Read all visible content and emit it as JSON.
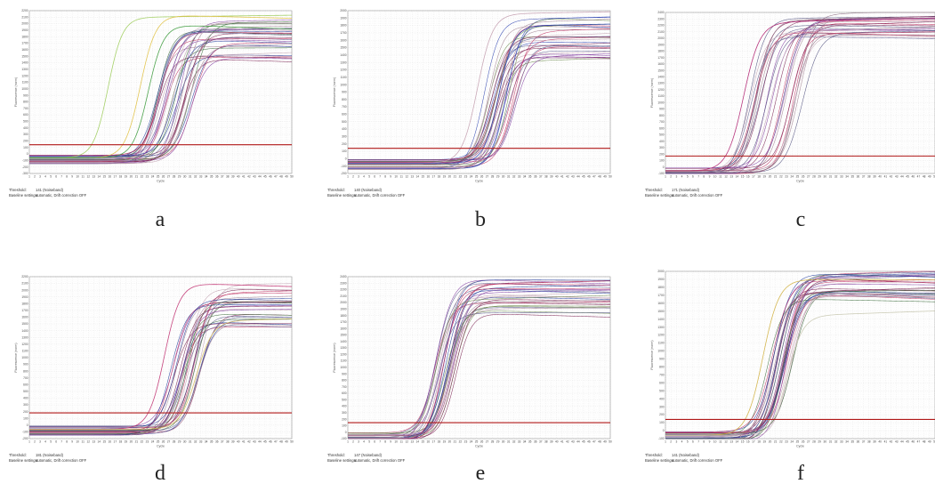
{
  "chart_data": [
    {
      "type": "line",
      "panel_label": "a",
      "xlabel": "Cycle",
      "ylabel": "Fluorescence (norm)",
      "xlim": [
        1,
        50
      ],
      "ylim": [
        -300,
        2200
      ],
      "ytick_step": 100,
      "threshold": 141,
      "threshold_text": "141 (Noiseband)",
      "baseline_text": "automatic, Drift correction OFF",
      "grid": true,
      "n_curves": 32,
      "ct_range": [
        23,
        31
      ],
      "plateau_range": [
        1450,
        2050
      ],
      "special": [
        {
          "ct": 14.5,
          "plateau": 2100,
          "color": "#9ccc5a"
        },
        {
          "ct": 20.5,
          "plateau": 2130,
          "color": "#e0c040"
        },
        {
          "ct": 22,
          "plateau": 1980,
          "color": "#3a9a3a"
        }
      ],
      "colors": [
        "#7a2050",
        "#203c9c",
        "#c03060",
        "#5a5a8c",
        "#3a6a3a",
        "#a08090",
        "#803aa0",
        "#c0a0b0"
      ]
    },
    {
      "type": "line",
      "panel_label": "b",
      "xlabel": "Cycle",
      "ylabel": "Fluorescence (norm)",
      "xlim": [
        1,
        50
      ],
      "ylim": [
        -200,
        2000
      ],
      "ytick_step": 100,
      "threshold": 140,
      "threshold_text": "140 (Noiseband)",
      "baseline_text": "automatic, Drift correction OFF",
      "grid": true,
      "n_curves": 30,
      "ct_range": [
        25,
        31
      ],
      "plateau_range": [
        1300,
        1900
      ],
      "special": [
        {
          "ct": 24,
          "plateau": 1960,
          "color": "#c4a0b0"
        },
        {
          "ct": 28,
          "plateau": 1800,
          "color": "#2a40b0"
        }
      ],
      "colors": [
        "#7a2050",
        "#2a40b0",
        "#c03060",
        "#5a5a8c",
        "#6a8a4a",
        "#a08090",
        "#803aa0",
        "#c0a0b0"
      ]
    },
    {
      "type": "line",
      "panel_label": "c",
      "xlabel": "Cycle",
      "ylabel": "Fluorescence (norm)",
      "xlim": [
        1,
        50
      ],
      "ylim": [
        -100,
        2400
      ],
      "ytick_step": 100,
      "threshold": 171,
      "threshold_text": "171 (Noiseband)",
      "baseline_text": "automatic, Drift correction OFF",
      "grid": true,
      "n_curves": 26,
      "ct_range": [
        14,
        25
      ],
      "plateau_range": [
        2000,
        2380
      ],
      "special": [
        {
          "ct": 14,
          "plateau": 2250,
          "color": "#b02070"
        },
        {
          "ct": 16,
          "plateau": 2100,
          "color": "#c05070"
        }
      ],
      "colors": [
        "#7a2050",
        "#4a4a7a",
        "#c03060",
        "#8a6a80",
        "#5a5a8c",
        "#a08090",
        "#803aa0",
        "#c0a0b0"
      ]
    },
    {
      "type": "line",
      "panel_label": "d",
      "xlabel": "Cycle",
      "ylabel": "Fluorescence (norm)",
      "xlim": [
        1,
        50
      ],
      "ylim": [
        -200,
        2200
      ],
      "ytick_step": 100,
      "threshold": 181,
      "threshold_text": "181 (Noiseband)",
      "baseline_text": "automatic, Drift correction OFF",
      "grid": true,
      "n_curves": 30,
      "ct_range": [
        26,
        32
      ],
      "plateau_range": [
        1450,
        2150
      ],
      "special": [
        {
          "ct": 25,
          "plateau": 2100,
          "color": "#c03070"
        },
        {
          "ct": 31,
          "plateau": 1550,
          "color": "#d8c060"
        }
      ],
      "colors": [
        "#7a2050",
        "#203c9c",
        "#c03060",
        "#5a5a8c",
        "#3a6a3a",
        "#a08090",
        "#803aa0",
        "#c0a0b0"
      ]
    },
    {
      "type": "line",
      "panel_label": "e",
      "xlabel": "Cycle",
      "ylabel": "Fluorescence (norm)",
      "xlim": [
        1,
        50
      ],
      "ylim": [
        -100,
        2400
      ],
      "ytick_step": 100,
      "threshold": 147,
      "threshold_text": "147 (Noiseband)",
      "baseline_text": "automatic, Drift correction OFF",
      "grid": true,
      "n_curves": 30,
      "ct_range": [
        16,
        20
      ],
      "plateau_range": [
        1800,
        2380
      ],
      "special": [],
      "colors": [
        "#7a2050",
        "#203c9c",
        "#c03060",
        "#5a5a8c",
        "#6a8a4a",
        "#a08090",
        "#803aa0",
        "#c0a0b0"
      ]
    },
    {
      "type": "line",
      "panel_label": "f",
      "xlabel": "Cycle",
      "ylabel": "Fluorescence (norm)",
      "xlim": [
        1,
        50
      ],
      "ylim": [
        -100,
        2000
      ],
      "ytick_step": 100,
      "threshold": 141,
      "threshold_text": "141 (Noiseband)",
      "baseline_text": "automatic, Drift correction OFF",
      "grid": true,
      "n_curves": 30,
      "ct_range": [
        18,
        23
      ],
      "plateau_range": [
        1650,
        1980
      ],
      "special": [
        {
          "ct": 17.5,
          "plateau": 1900,
          "color": "#d0b040"
        },
        {
          "ct": 22,
          "plateau": 1450,
          "color": "#c8c8b0"
        }
      ],
      "colors": [
        "#7a2050",
        "#203c9c",
        "#c03060",
        "#5a5a8c",
        "#3a6a3a",
        "#a08090",
        "#803aa0",
        "#c0a0b0"
      ]
    }
  ],
  "footer_labels": {
    "threshold": "Threshold:",
    "baseline": "Baseline settings:"
  }
}
